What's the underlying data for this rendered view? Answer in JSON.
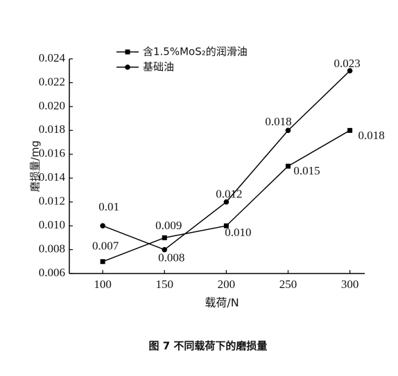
{
  "chart_data": {
    "type": "line",
    "x": [
      100,
      150,
      200,
      250,
      300
    ],
    "xlim": [
      73,
      312
    ],
    "xticks": [
      100,
      150,
      200,
      250,
      300
    ],
    "ylim": [
      0.006,
      0.024
    ],
    "yticks": [
      0.006,
      0.008,
      {
        "value": 0.01,
        "label": "0.010"
      },
      0.012,
      0.014,
      0.016,
      0.018,
      {
        "value": 0.02,
        "label": "0.020"
      },
      0.022,
      0.024
    ],
    "xlabel": "载荷/N",
    "ylabel": "磨损量/mg",
    "caption": "图 7   不同载荷下的磨损量",
    "series": [
      {
        "name": "含1.5%MoS₂的润滑油",
        "color": "#000000",
        "marker": "square",
        "values": [
          0.007,
          0.009,
          0.01,
          0.015,
          0.018
        ],
        "value_labels": [
          "0.007",
          "0.009",
          "0.010",
          "0.015",
          "0.018"
        ]
      },
      {
        "name": "基础油",
        "color": "#000000",
        "marker": "circle",
        "values": [
          0.01,
          0.008,
          0.012,
          0.018,
          0.023
        ],
        "value_labels": [
          "0.01",
          "0.008",
          "0.012",
          "0.018",
          "0.023"
        ]
      }
    ]
  }
}
